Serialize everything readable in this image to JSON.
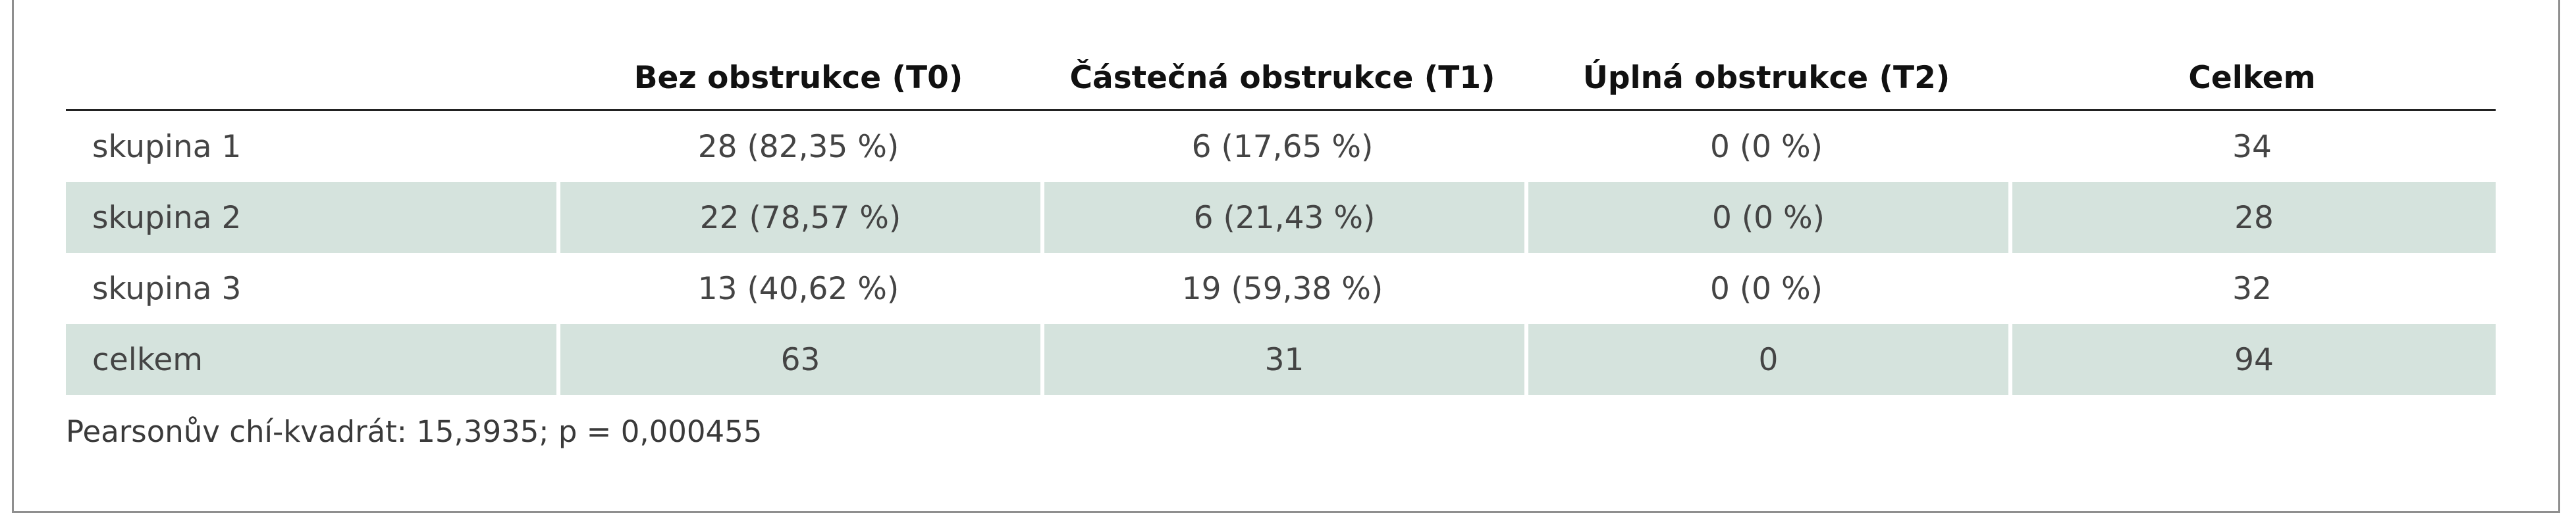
{
  "table": {
    "headers": [
      "",
      "Bez obstrukce (T0)",
      "Částečná obstrukce (T1)",
      "Úplná obstrukce (T2)",
      "Celkem"
    ],
    "rows": [
      [
        "skupina 1",
        "28 (82,35 %)",
        "6 (17,65 %)",
        "0 (0 %)",
        "34"
      ],
      [
        "skupina 2",
        "22 (78,57 %)",
        "6 (21,43 %)",
        "0 (0 %)",
        "28"
      ],
      [
        "skupina 3",
        "13 (40,62 %)",
        "19 (59,38 %)",
        "0 (0 %)",
        "32"
      ],
      [
        "celkem",
        "63",
        "31",
        "0",
        "94"
      ]
    ]
  },
  "footnote": "Pearsonův chí-kvadrát: 15,3935; p = 0,000455",
  "colors": {
    "row_shading": "#d5e3dd",
    "frame_border": "#8f8f8f"
  }
}
